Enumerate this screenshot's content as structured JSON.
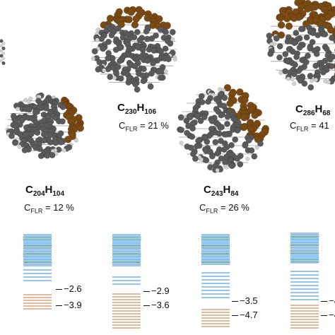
{
  "colors": {
    "carbon": "#5a5a5a",
    "hydrogen": "#d2d2d2",
    "flr": "#7a4a14",
    "occupied_level": "#c8763a",
    "unoccupied_level": "#2a8be8"
  },
  "structures": [
    {
      "id": "s0",
      "formula": {
        "c": "C",
        "n": "204",
        "h": "H",
        "m": "104"
      },
      "cflr": {
        "prefix": "C",
        "sub": "FLR",
        "value": "= 12 %"
      }
    },
    {
      "id": "s1",
      "formula": {
        "c": "C",
        "n": "230",
        "h": "H",
        "m": "106"
      },
      "cflr": {
        "prefix": "C",
        "sub": "FLR",
        "value": "= 21 %"
      }
    },
    {
      "id": "s2",
      "formula": {
        "c": "C",
        "n": "243",
        "h": "H",
        "m": "84"
      },
      "cflr": {
        "prefix": "C",
        "sub": "FLR",
        "value": "= 26 %"
      }
    },
    {
      "id": "s3",
      "formula": {
        "c": "C",
        "n": "286",
        "h": "H",
        "m": "68"
      },
      "cflr": {
        "prefix": "C",
        "sub": "FLR",
        "value": "= 41"
      }
    }
  ],
  "level_panels": [
    {
      "id": "p0",
      "upper_label": "−2.6",
      "lower_label": "−3.9"
    },
    {
      "id": "p1",
      "upper_label": "−2.9",
      "lower_label": "−3.6"
    },
    {
      "id": "p2",
      "upper_label": "−3.5",
      "lower_label": "−4.7"
    },
    {
      "id": "p3",
      "upper_label": "−4",
      "lower_label": "−4"
    }
  ]
}
